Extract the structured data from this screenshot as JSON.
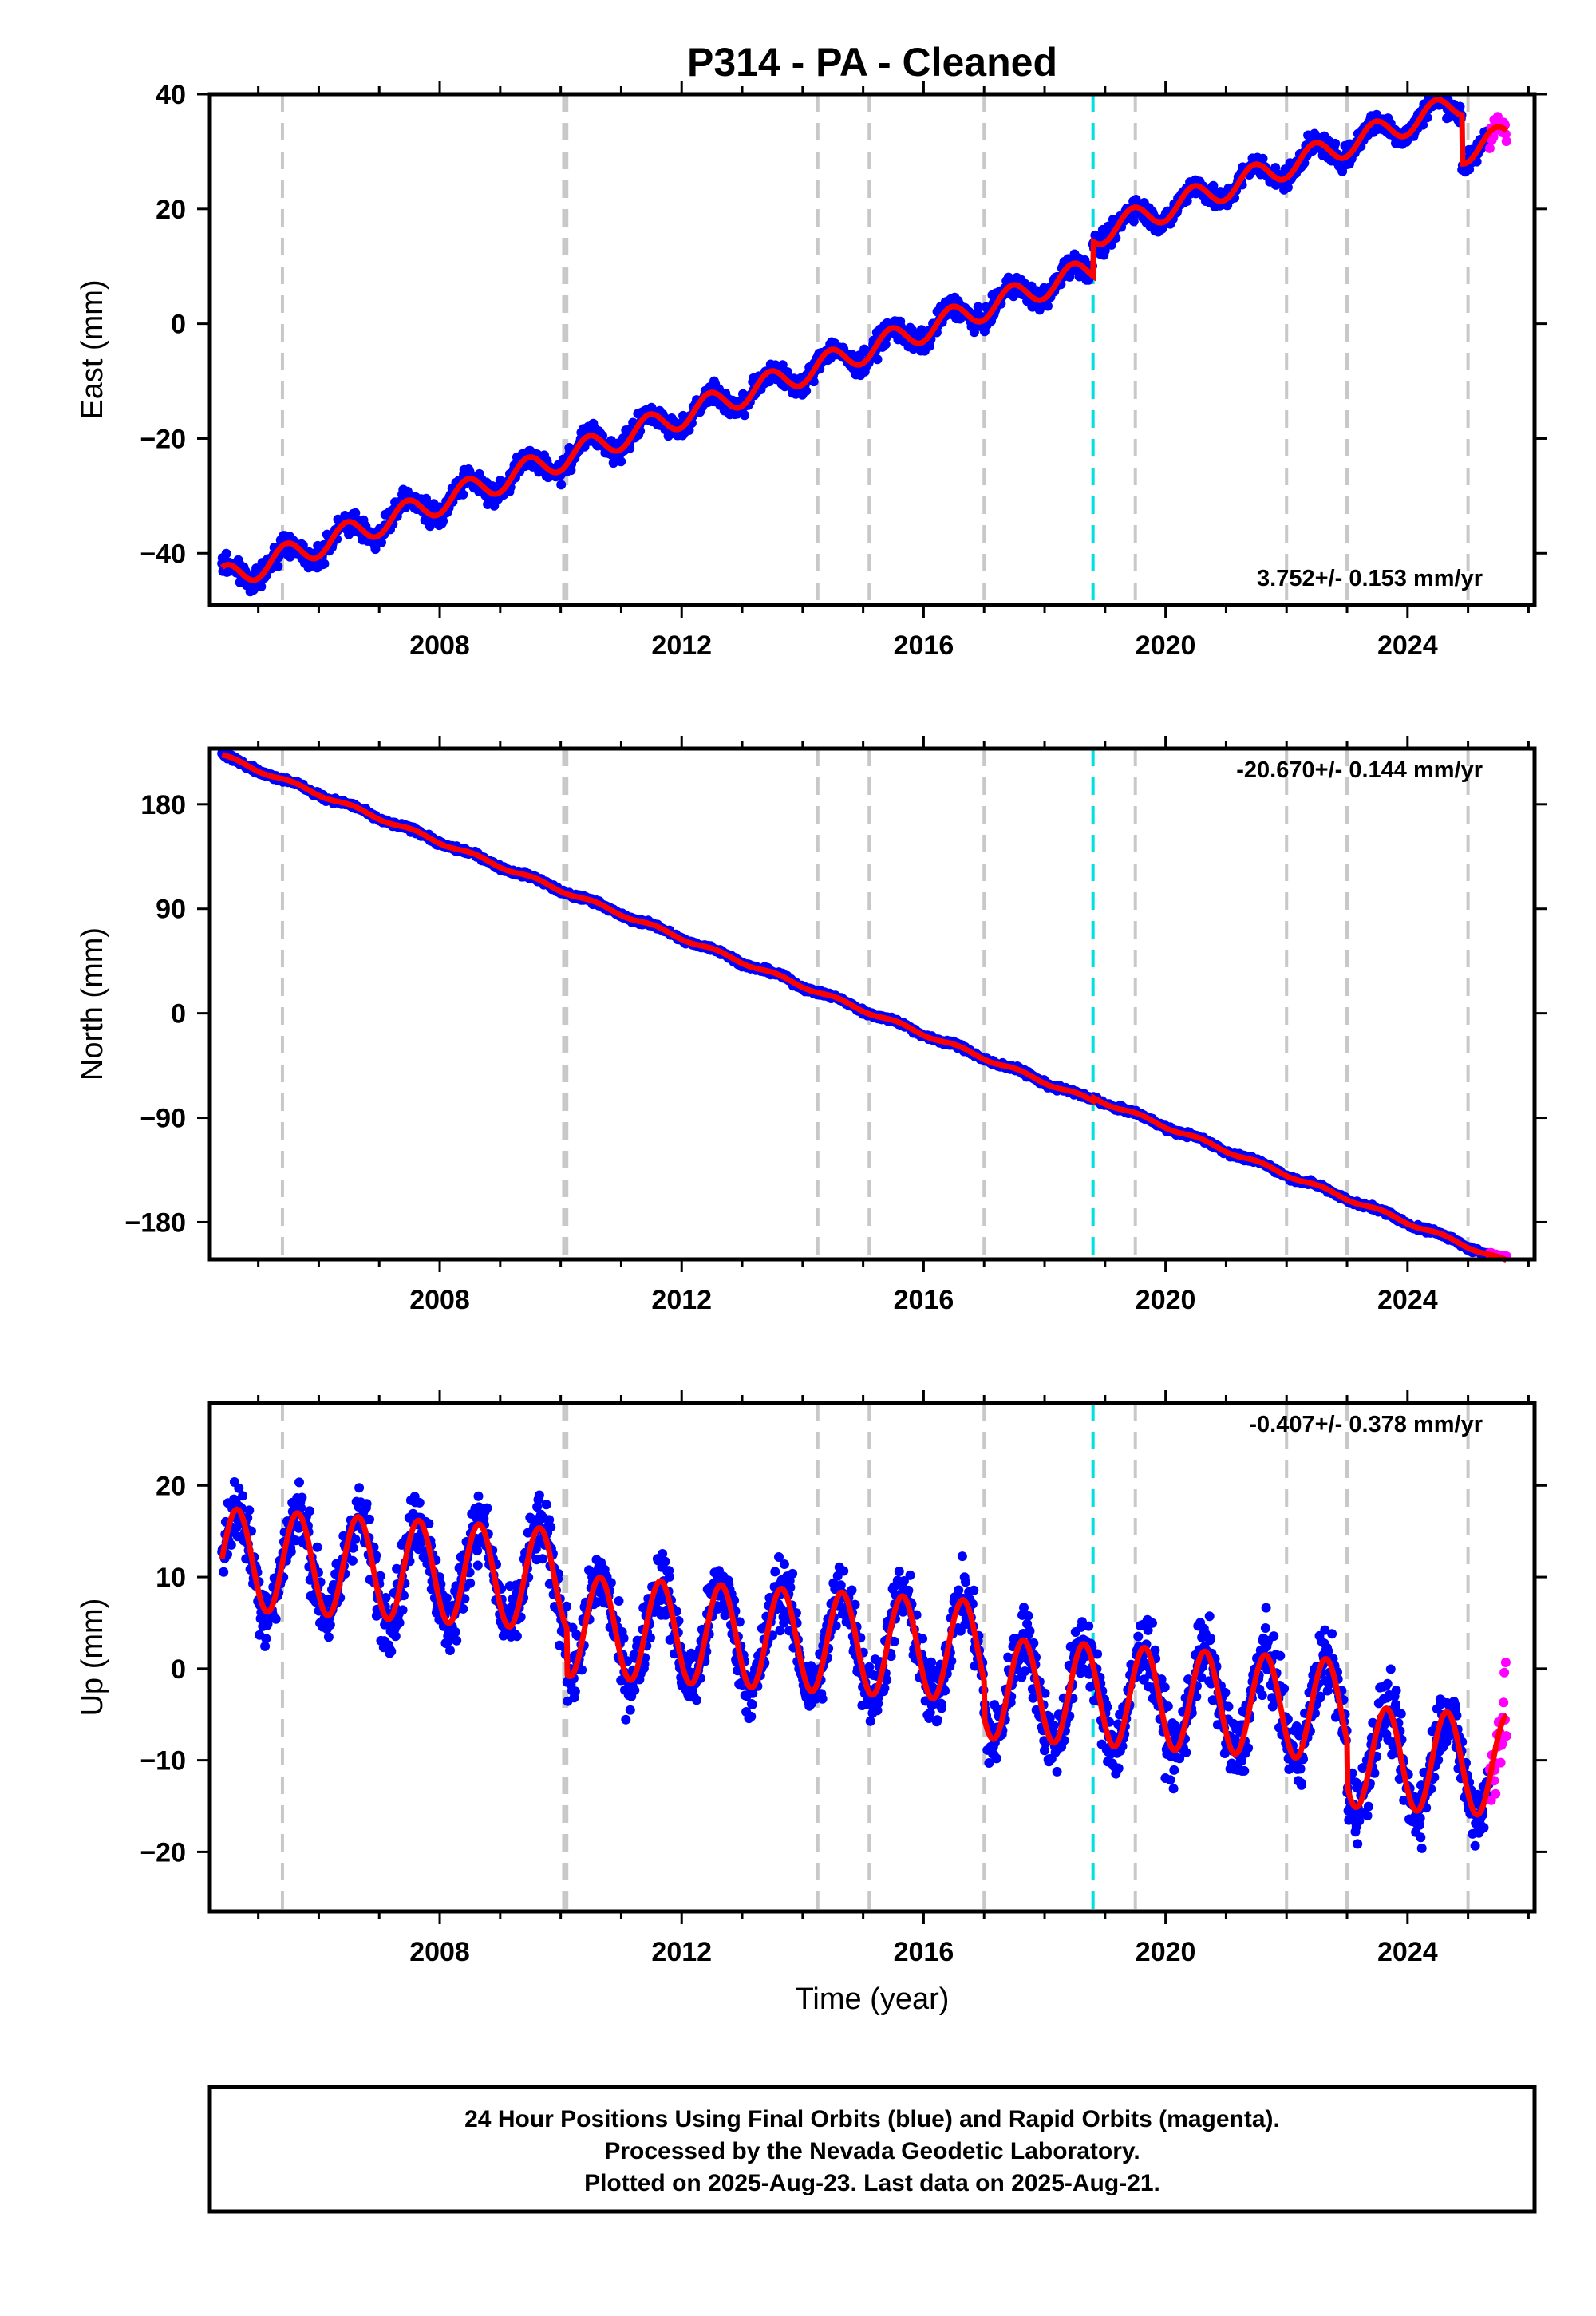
{
  "title": "P314  - PA - Cleaned",
  "colors": {
    "final_points": "#0000ff",
    "rapid_points": "#ff00ff",
    "model_fit": "#ff0000",
    "event_line": "#c8c8c8",
    "antenna_line": "#00e0e0"
  },
  "chart_data": [
    {
      "type": "scatter",
      "ylabel": "East (mm)",
      "xlabel": "",
      "rate_label": "3.752+/- 0.153 mm/yr",
      "xlim": [
        2004.2,
        2026.1
      ],
      "ylim": [
        -49,
        40
      ],
      "xticks": [
        2008,
        2012,
        2016,
        2020,
        2024
      ],
      "xtick_labels": [
        "2008",
        "2012",
        "2016",
        "2020",
        "2024"
      ],
      "yticks": [
        -40,
        -20,
        0,
        20,
        40
      ],
      "ytick_labels": [
        "−40",
        "−20",
        "0",
        "20",
        "40"
      ],
      "event_lines": [
        2005.4,
        2010.05,
        2010.1,
        2014.25,
        2015.1,
        2017.0,
        2019.5,
        2022.0,
        2023.0,
        2025.0
      ],
      "antenna_change": 2018.8,
      "model": {
        "t0": 2004.4,
        "v0": -44.5,
        "rate": 3.752,
        "amp": 2.2,
        "phase": 1.2,
        "offsets": [
          {
            "t": 2018.8,
            "dv": 6.0
          },
          {
            "t": 2024.9,
            "dv": -8.5
          }
        ]
      },
      "noise": 1.3,
      "final_end": 2025.35,
      "rapid_end": 2025.64
    },
    {
      "type": "scatter",
      "ylabel": "North (mm)",
      "xlabel": "",
      "rate_label": "-20.670+/- 0.144 mm/yr",
      "xlim": [
        2004.2,
        2026.1
      ],
      "ylim": [
        -212,
        228
      ],
      "xticks": [
        2008,
        2012,
        2016,
        2020,
        2024
      ],
      "xtick_labels": [
        "2008",
        "2012",
        "2016",
        "2020",
        "2024"
      ],
      "yticks": [
        -180,
        -90,
        0,
        90,
        180
      ],
      "ytick_labels": [
        "−180",
        "−90",
        "0",
        "90",
        "180"
      ],
      "event_lines": [
        2005.4,
        2010.05,
        2010.1,
        2014.25,
        2015.1,
        2017.0,
        2019.5,
        2022.0,
        2023.0,
        2025.0
      ],
      "antenna_change": 2018.8,
      "model": {
        "t0": 2004.4,
        "v0": 222,
        "rate": -20.67,
        "amp": 1.5,
        "phase": 0.5,
        "offsets": [
          {
            "t": 2018.8,
            "dv": 3.0
          }
        ]
      },
      "noise": 1.6,
      "final_end": 2025.35,
      "rapid_end": 2025.64
    },
    {
      "type": "scatter",
      "ylabel": "Up (mm)",
      "xlabel": "Time (year)",
      "rate_label": "-0.407+/- 0.378 mm/yr",
      "xlim": [
        2004.2,
        2026.1
      ],
      "ylim": [
        -26.5,
        29
      ],
      "xticks": [
        2008,
        2012,
        2016,
        2020,
        2024
      ],
      "xtick_labels": [
        "2008",
        "2012",
        "2016",
        "2020",
        "2024"
      ],
      "yticks": [
        -20,
        -10,
        0,
        10,
        20
      ],
      "ytick_labels": [
        "−20",
        "−10",
        "0",
        "10",
        "20"
      ],
      "event_lines": [
        2005.4,
        2010.05,
        2010.1,
        2014.25,
        2015.1,
        2017.0,
        2019.5,
        2022.0,
        2023.0,
        2025.0
      ],
      "antenna_change": 2018.8,
      "model": {
        "t0": 2004.4,
        "v0": 12,
        "rate": -0.407,
        "amp": 5.5,
        "phase": 0.0,
        "offsets": [
          {
            "t": 2010.1,
            "dv": -5.0
          },
          {
            "t": 2017.0,
            "dv": -4.0
          },
          {
            "t": 2023.0,
            "dv": -5.0
          }
        ]
      },
      "noise": 2.6,
      "final_end": 2025.35,
      "rapid_end": 2025.64
    }
  ],
  "footer": {
    "line1": "24 Hour Positions Using Final Orbits (blue) and Rapid Orbits (magenta).",
    "line2": "Processed by the Nevada Geodetic Laboratory.",
    "line3": "Plotted on 2025-Aug-23. Last data on 2025-Aug-21."
  }
}
